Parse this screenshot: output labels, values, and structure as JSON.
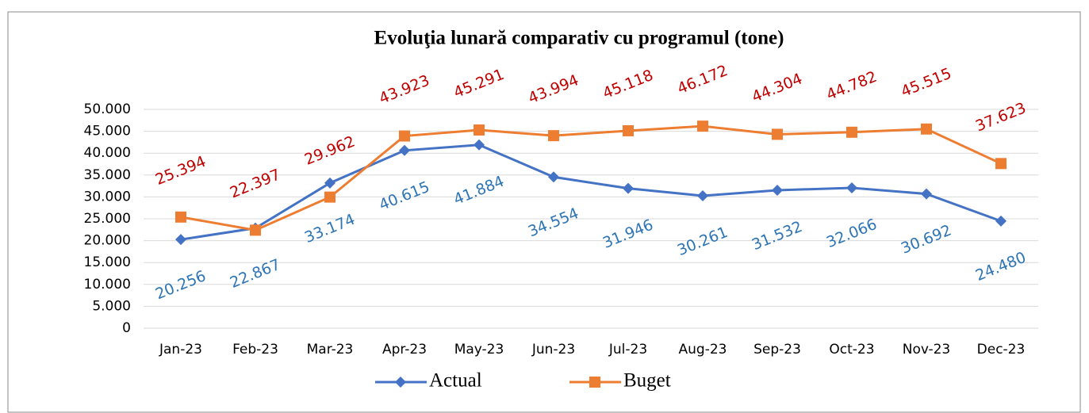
{
  "chart_data": {
    "type": "line",
    "title": "Evoluţia lunară comparativ cu programul (tone)",
    "categories": [
      "Jan-23",
      "Feb-23",
      "Mar-23",
      "Apr-23",
      "May-23",
      "Jun-23",
      "Jul-23",
      "Aug-23",
      "Sep-23",
      "Oct-23",
      "Nov-23",
      "Dec-23"
    ],
    "series": [
      {
        "name": "Actual",
        "color": "#4472c4",
        "marker": "diamond",
        "label_color": "#2e75b6",
        "values": [
          20256,
          22867,
          33174,
          40615,
          41884,
          34554,
          31946,
          30261,
          31532,
          32066,
          30692,
          24480
        ],
        "value_labels": [
          "20.256",
          "22.867",
          "33.174",
          "40.615",
          "41.884",
          "34.554",
          "31.946",
          "30.261",
          "31.532",
          "32.066",
          "30.692",
          "24.480"
        ]
      },
      {
        "name": "Buget",
        "color": "#ed7d31",
        "marker": "square",
        "label_color": "#c00000",
        "values": [
          25394,
          22397,
          29962,
          43923,
          45291,
          43994,
          45118,
          46172,
          44304,
          44782,
          45515,
          37623
        ],
        "value_labels": [
          "25.394",
          "22.397",
          "29.962",
          "43.923",
          "45.291",
          "43.994",
          "45.118",
          "46.172",
          "44.304",
          "44.782",
          "45.515",
          "37.623"
        ]
      }
    ],
    "ylim": [
      0,
      50000
    ],
    "yticks": [
      0,
      {
        "value": 5000,
        "label": "5.000"
      },
      {
        "value": 10000,
        "label": "10.000"
      },
      {
        "value": 15000,
        "label": "15.000"
      },
      {
        "value": 20000,
        "label": "20.000"
      },
      {
        "value": 25000,
        "label": "25.000"
      },
      {
        "value": 30000,
        "label": "30.000"
      },
      {
        "value": 35000,
        "label": "35.000"
      },
      {
        "value": 40000,
        "label": "40.000"
      },
      {
        "value": 45000,
        "label": "45.000"
      },
      {
        "value": 50000,
        "label": "50.000"
      }
    ],
    "grid": true,
    "legend": "bottom"
  }
}
